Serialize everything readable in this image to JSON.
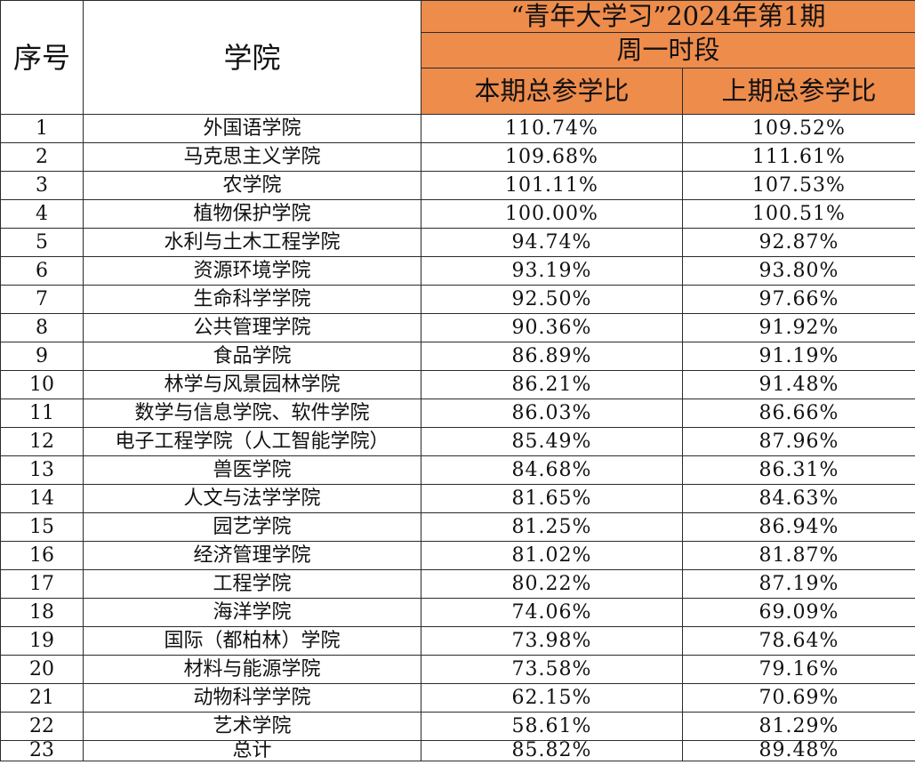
{
  "header": {
    "col_index": "序号",
    "col_college": "学院",
    "title": "“青年大学习”2024年第1期",
    "period": "周一时段",
    "col_current": "本期总参学比",
    "col_previous": "上期总参学比"
  },
  "rows": [
    {
      "index": "1",
      "college": "外国语学院",
      "current": "110.74%",
      "previous": "109.52%"
    },
    {
      "index": "2",
      "college": "马克思主义学院",
      "current": "109.68%",
      "previous": "111.61%"
    },
    {
      "index": "3",
      "college": "农学院",
      "current": "101.11%",
      "previous": "107.53%"
    },
    {
      "index": "4",
      "college": "植物保护学院",
      "current": "100.00%",
      "previous": "100.51%"
    },
    {
      "index": "5",
      "college": "水利与土木工程学院",
      "current": "94.74%",
      "previous": "92.87%"
    },
    {
      "index": "6",
      "college": "资源环境学院",
      "current": "93.19%",
      "previous": "93.80%"
    },
    {
      "index": "7",
      "college": "生命科学学院",
      "current": "92.50%",
      "previous": "97.66%"
    },
    {
      "index": "8",
      "college": "公共管理学院",
      "current": "90.36%",
      "previous": "91.92%"
    },
    {
      "index": "9",
      "college": "食品学院",
      "current": "86.89%",
      "previous": "91.19%"
    },
    {
      "index": "10",
      "college": "林学与风景园林学院",
      "current": "86.21%",
      "previous": "91.48%"
    },
    {
      "index": "11",
      "college": "数学与信息学院、软件学院",
      "current": "86.03%",
      "previous": "86.66%"
    },
    {
      "index": "12",
      "college": "电子工程学院（人工智能学院）",
      "current": "85.49%",
      "previous": "87.96%"
    },
    {
      "index": "13",
      "college": "兽医学院",
      "current": "84.68%",
      "previous": "86.31%"
    },
    {
      "index": "14",
      "college": "人文与法学学院",
      "current": "81.65%",
      "previous": "84.63%"
    },
    {
      "index": "15",
      "college": "园艺学院",
      "current": "81.25%",
      "previous": "86.94%"
    },
    {
      "index": "16",
      "college": "经济管理学院",
      "current": "81.02%",
      "previous": "81.87%"
    },
    {
      "index": "17",
      "college": "工程学院",
      "current": "80.22%",
      "previous": "87.19%"
    },
    {
      "index": "18",
      "college": "海洋学院",
      "current": "74.06%",
      "previous": "69.09%"
    },
    {
      "index": "19",
      "college": "国际（都柏林）学院",
      "current": "73.98%",
      "previous": "78.64%"
    },
    {
      "index": "20",
      "college": "材料与能源学院",
      "current": "73.58%",
      "previous": "79.16%"
    },
    {
      "index": "21",
      "college": "动物科学学院",
      "current": "62.15%",
      "previous": "70.69%"
    },
    {
      "index": "22",
      "college": "艺术学院",
      "current": "58.61%",
      "previous": "81.29%"
    },
    {
      "index": "23",
      "college": "总计",
      "current": "85.82%",
      "previous": "89.48%"
    }
  ]
}
